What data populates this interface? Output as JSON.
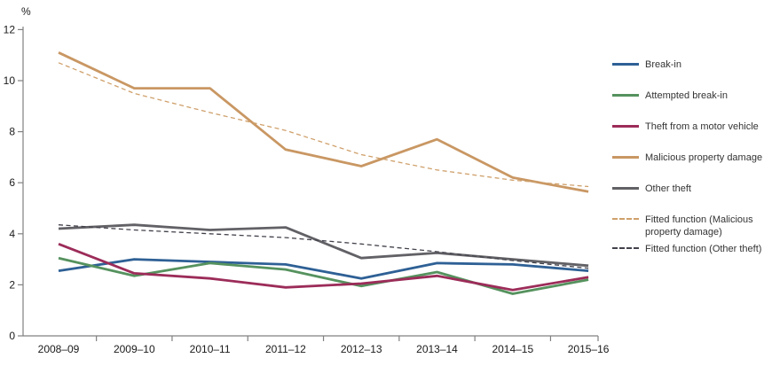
{
  "chart_data": {
    "type": "line",
    "title": "",
    "ylabel": "%",
    "xlabel": "",
    "ylim": [
      0,
      12
    ],
    "yticks": [
      0,
      2,
      4,
      6,
      8,
      10,
      12
    ],
    "grid": false,
    "legend_position": "right",
    "axis_color": "#808080",
    "tick_label_color": "#1a1a1a",
    "categories": [
      "2008–09",
      "2009–10",
      "2010–11",
      "2011–12",
      "2012–13",
      "2013–14",
      "2014–15",
      "2015–16"
    ],
    "series": [
      {
        "name": "Break-in",
        "color": "#2E6095",
        "style": "solid",
        "values": [
          2.55,
          3.0,
          2.9,
          2.8,
          2.25,
          2.85,
          2.8,
          2.55
        ]
      },
      {
        "name": "Attempted break-in",
        "color": "#55925E",
        "style": "solid",
        "values": [
          3.05,
          2.35,
          2.85,
          2.6,
          1.95,
          2.5,
          1.65,
          2.2
        ]
      },
      {
        "name": "Theft from a motor vehicle",
        "color": "#9C2C59",
        "style": "solid",
        "values": [
          3.6,
          2.45,
          2.25,
          1.9,
          2.05,
          2.35,
          1.8,
          2.3
        ]
      },
      {
        "name": "Malicious property damage",
        "color": "#C99763",
        "style": "solid",
        "values": [
          11.1,
          9.7,
          9.7,
          7.3,
          6.65,
          7.7,
          6.2,
          5.65
        ]
      },
      {
        "name": "Other theft",
        "color": "#616166",
        "style": "solid",
        "values": [
          4.2,
          4.35,
          4.15,
          4.25,
          3.05,
          3.25,
          3.0,
          2.75
        ]
      },
      {
        "name": "Fitted function (Malicious property damage)",
        "color": "#CFA06B",
        "style": "dashed",
        "values": [
          10.7,
          9.5,
          8.75,
          8.05,
          7.1,
          6.5,
          6.1,
          5.85
        ]
      },
      {
        "name": "Fitted function (Other theft)",
        "color": "#42424C",
        "style": "dashed",
        "values": [
          4.35,
          4.15,
          4.0,
          3.85,
          3.6,
          3.3,
          2.95,
          2.65
        ]
      }
    ]
  }
}
